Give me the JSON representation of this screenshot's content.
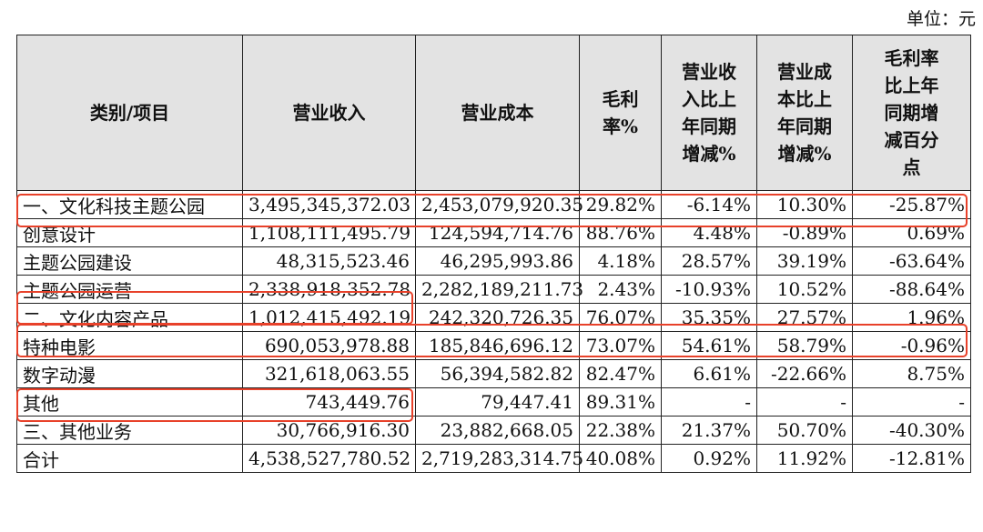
{
  "unit_label": "单位：元",
  "headers": [
    "类别/项目",
    "营业收入",
    "营业成本",
    "毛利\n率%",
    "营业收\n入比上\n年同期\n增减%",
    "营业成\n本比上\n年同期\n增减%",
    "毛利率\n比上年\n同期增\n减百分\n点"
  ],
  "rows": [
    [
      "一、文化科技主题公园",
      "3,495,345,372.03",
      "2,453,079,920.35",
      "29.82%",
      "-6.14%",
      "10.30%",
      "-25.87%"
    ],
    [
      "创意设计",
      "1,108,111,495.79",
      "124,594,714.76",
      "88.76%",
      "4.48%",
      "-0.89%",
      "0.69%"
    ],
    [
      "主题公园建设",
      "48,315,523.46",
      "46,295,993.86",
      "4.18%",
      "28.57%",
      "39.19%",
      "-63.64%"
    ],
    [
      "主题公园运营",
      "2,338,918,352.78",
      "2,282,189,211.73",
      "2.43%",
      "-10.93%",
      "10.52%",
      "-88.64%"
    ],
    [
      "二、文化内容产品",
      "1,012,415,492.19",
      "242,320,726.35",
      "76.07%",
      "35.35%",
      "27.57%",
      "1.96%"
    ],
    [
      "特种电影",
      "690,053,978.88",
      "185,846,696.12",
      "73.07%",
      "54.61%",
      "58.79%",
      "-0.96%"
    ],
    [
      "数字动漫",
      "321,618,063.55",
      "56,394,582.82",
      "82.47%",
      "6.61%",
      "-22.66%",
      "8.75%"
    ],
    [
      "其他",
      "743,449.76",
      "79,447.41",
      "89.31%",
      "-",
      "-",
      "-"
    ],
    [
      "三、其他业务",
      "30,766,916.30",
      "23,882,668.05",
      "22.38%",
      "21.37%",
      "50.70%",
      "-40.30%"
    ],
    [
      "合计",
      "4,538,527,780.52",
      "2,719,283,314.75",
      "40.08%",
      "0.92%",
      "11.92%",
      "-12.81%"
    ]
  ],
  "highlight_color": "#e8412a"
}
